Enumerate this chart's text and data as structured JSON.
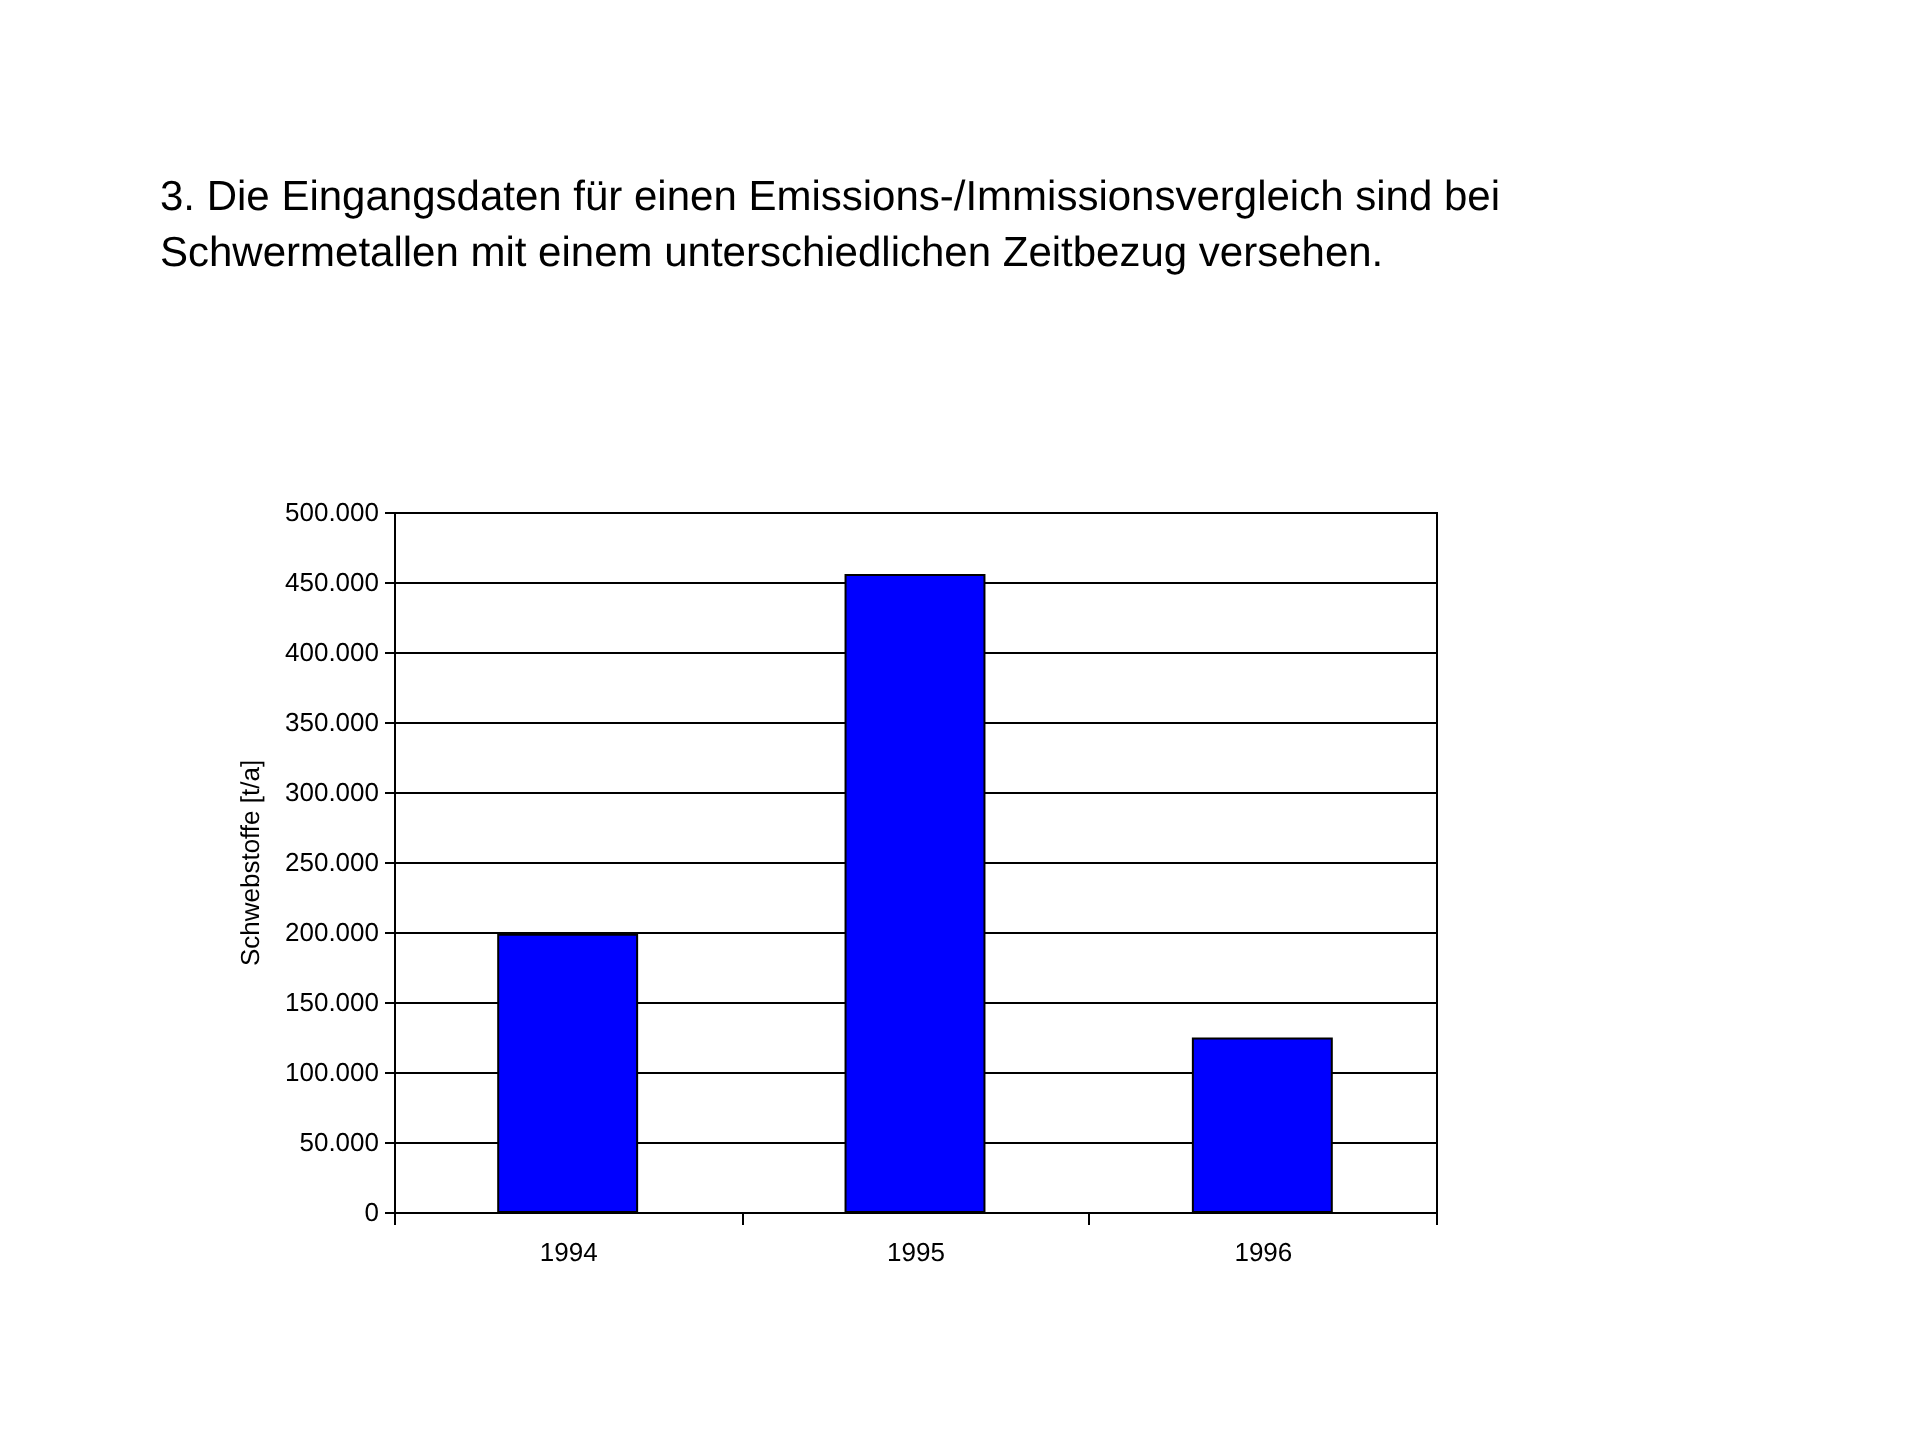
{
  "chart_data": {
    "type": "bar",
    "title": "3. Die Eingangsdaten für einen Emissions-/Immissionsvergleich sind bei Schwermetallen mit einem unterschiedlichen Zeitbezug versehen.",
    "categories": [
      "1994",
      "1995",
      "1996"
    ],
    "values": [
      198000,
      455000,
      124000
    ],
    "color": "#0000ff",
    "ylabel": "Schwebstoffe [t/a]",
    "ylim": [
      0,
      500000
    ],
    "yticks": [
      0,
      {
        "value": 50000,
        "label": "50.000"
      },
      {
        "value": 100000,
        "label": "100.000"
      },
      {
        "value": 150000,
        "label": "150.000"
      },
      {
        "value": 200000,
        "label": "200.000"
      },
      {
        "value": 250000,
        "label": "250.000"
      },
      {
        "value": 300000,
        "label": "300.000"
      },
      {
        "value": 350000,
        "label": "350.000"
      },
      {
        "value": 400000,
        "label": "400.000"
      },
      {
        "value": 450000,
        "label": "450.000"
      },
      {
        "value": 500000,
        "label": "500.000"
      }
    ],
    "grid": "y"
  }
}
